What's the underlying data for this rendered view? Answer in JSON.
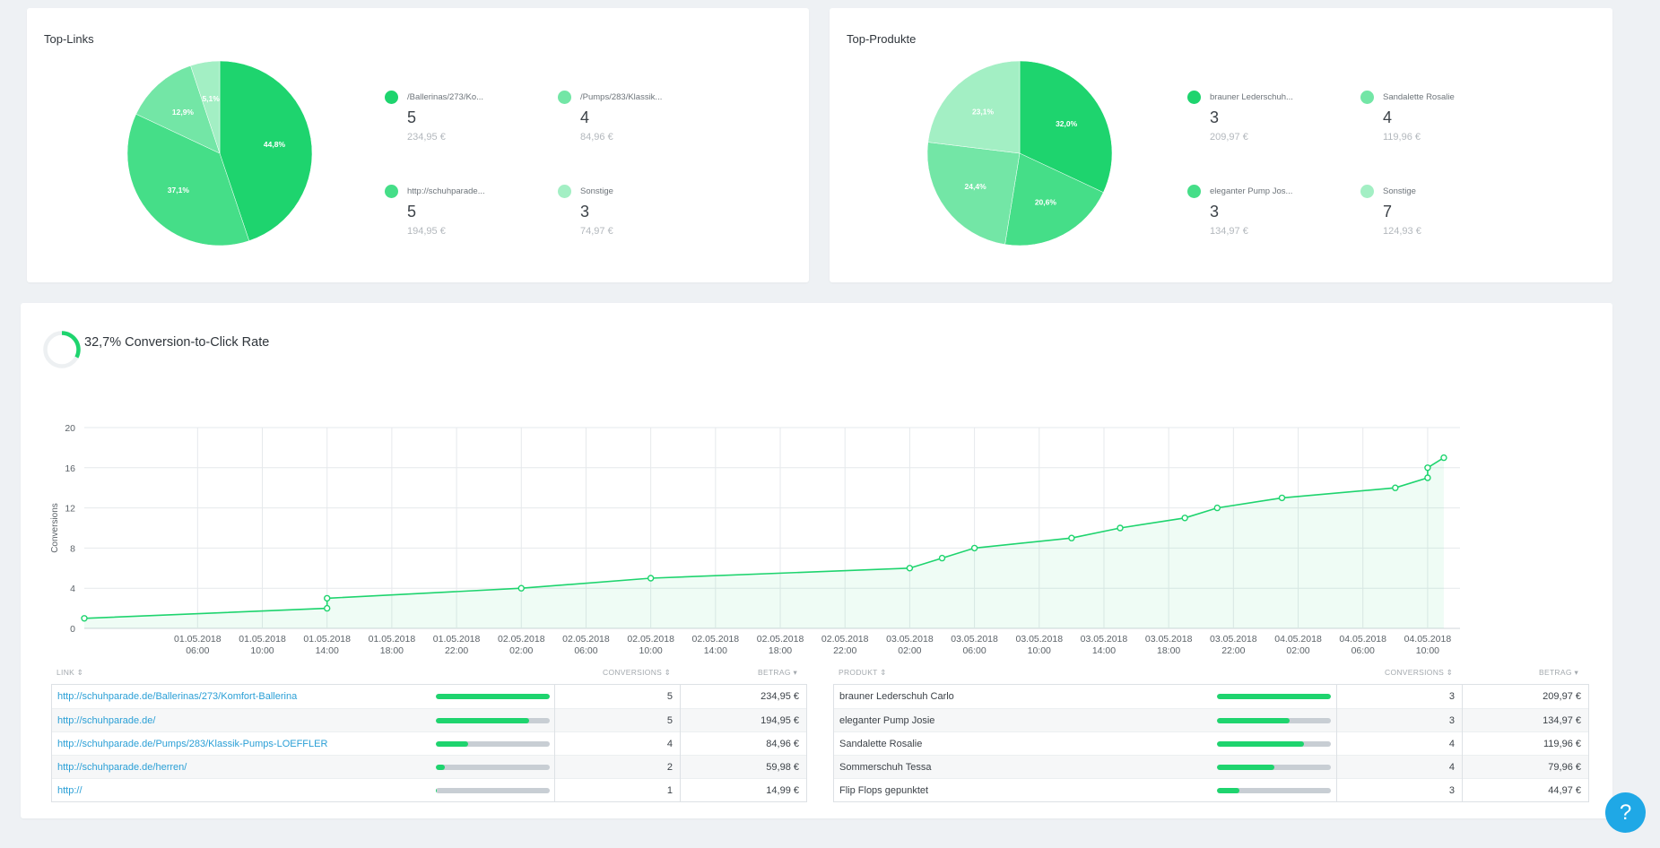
{
  "colors": {
    "accent": "#1ed46e",
    "slice1": "#1ed46e",
    "slice2": "#45de88",
    "slice3": "#73e6a6",
    "slice4": "#a3efc4",
    "link": "#2a9fd6",
    "track": "#c8ced4",
    "help": "#1fa8e6"
  },
  "top_links": {
    "title": "Top-Links",
    "legend": [
      {
        "label": "/Ballerinas/273/Ko...",
        "count": "5",
        "amount": "234,95 €"
      },
      {
        "label": "/Pumps/283/Klassik...",
        "count": "4",
        "amount": "84,96 €"
      },
      {
        "label": "http://schuhparade...",
        "count": "5",
        "amount": "194,95 €"
      },
      {
        "label": "Sonstige",
        "count": "3",
        "amount": "74,97 €"
      }
    ]
  },
  "top_products": {
    "title": "Top-Produkte",
    "legend": [
      {
        "label": "brauner Lederschuh...",
        "count": "3",
        "amount": "209,97 €"
      },
      {
        "label": "Sandalette Rosalie",
        "count": "4",
        "amount": "119,96 €"
      },
      {
        "label": "eleganter Pump Jos...",
        "count": "3",
        "amount": "134,97 €"
      },
      {
        "label": "Sonstige",
        "count": "7",
        "amount": "124,93 €"
      }
    ]
  },
  "conversion": {
    "rate_text": "32,7% Conversion-to-Click Rate",
    "rate_value": 0.327
  },
  "chart_data": [
    {
      "type": "pie",
      "title": "Top-Links",
      "categories": [
        "/Ballerinas/273/Ko...",
        "http://schuhparade...",
        "/Pumps/283/Klassik...",
        "Sonstige"
      ],
      "values": [
        44.8,
        37.1,
        12.9,
        5.1
      ],
      "labels": [
        "44,8%",
        "37,1%",
        "12,9%",
        "5,1%"
      ]
    },
    {
      "type": "pie",
      "title": "Top-Produkte",
      "categories": [
        "brauner Lederschuh...",
        "eleganter Pump Jos...",
        "Sandalette Rosalie",
        "Sonstige"
      ],
      "values": [
        32.0,
        20.6,
        24.4,
        23.1
      ],
      "labels": [
        "32,0%",
        "20,6%",
        "24,4%",
        "23,1%"
      ]
    },
    {
      "type": "line",
      "title": "",
      "xlabel": "",
      "ylabel": "Conversions",
      "ylim": [
        0,
        20
      ],
      "yticks": [
        0,
        4,
        8,
        12,
        16,
        20
      ],
      "xlim": [
        "2018-04-30 23:00",
        "2018-05-04 12:00"
      ],
      "xticks": [
        {
          "t": "2018-05-01 06:00",
          "l1": "01.05.2018",
          "l2": "06:00"
        },
        {
          "t": "2018-05-01 10:00",
          "l1": "01.05.2018",
          "l2": "10:00"
        },
        {
          "t": "2018-05-01 14:00",
          "l1": "01.05.2018",
          "l2": "14:00"
        },
        {
          "t": "2018-05-01 18:00",
          "l1": "01.05.2018",
          "l2": "18:00"
        },
        {
          "t": "2018-05-01 22:00",
          "l1": "01.05.2018",
          "l2": "22:00"
        },
        {
          "t": "2018-05-02 02:00",
          "l1": "02.05.2018",
          "l2": "02:00"
        },
        {
          "t": "2018-05-02 06:00",
          "l1": "02.05.2018",
          "l2": "06:00"
        },
        {
          "t": "2018-05-02 10:00",
          "l1": "02.05.2018",
          "l2": "10:00"
        },
        {
          "t": "2018-05-02 14:00",
          "l1": "02.05.2018",
          "l2": "14:00"
        },
        {
          "t": "2018-05-02 18:00",
          "l1": "02.05.2018",
          "l2": "18:00"
        },
        {
          "t": "2018-05-02 22:00",
          "l1": "02.05.2018",
          "l2": "22:00"
        },
        {
          "t": "2018-05-03 02:00",
          "l1": "03.05.2018",
          "l2": "02:00"
        },
        {
          "t": "2018-05-03 06:00",
          "l1": "03.05.2018",
          "l2": "06:00"
        },
        {
          "t": "2018-05-03 10:00",
          "l1": "03.05.2018",
          "l2": "10:00"
        },
        {
          "t": "2018-05-03 14:00",
          "l1": "03.05.2018",
          "l2": "14:00"
        },
        {
          "t": "2018-05-03 18:00",
          "l1": "03.05.2018",
          "l2": "18:00"
        },
        {
          "t": "2018-05-03 22:00",
          "l1": "03.05.2018",
          "l2": "22:00"
        },
        {
          "t": "2018-05-04 02:00",
          "l1": "04.05.2018",
          "l2": "02:00"
        },
        {
          "t": "2018-05-04 06:00",
          "l1": "04.05.2018",
          "l2": "06:00"
        },
        {
          "t": "2018-05-04 10:00",
          "l1": "04.05.2018",
          "l2": "10:00"
        }
      ],
      "series": [
        {
          "points": [
            [
              "2018-04-30 23:00",
              1
            ],
            [
              "2018-05-01 14:00",
              2
            ],
            [
              "2018-05-01 14:00",
              3
            ],
            [
              "2018-05-02 02:00",
              4
            ],
            [
              "2018-05-02 10:00",
              5
            ],
            [
              "2018-05-03 02:00",
              6
            ],
            [
              "2018-05-03 04:00",
              7
            ],
            [
              "2018-05-03 06:00",
              8
            ],
            [
              "2018-05-03 12:00",
              9
            ],
            [
              "2018-05-03 15:00",
              10
            ],
            [
              "2018-05-03 19:00",
              11
            ],
            [
              "2018-05-03 21:00",
              12
            ],
            [
              "2018-05-04 01:00",
              13
            ],
            [
              "2018-05-04 08:00",
              14
            ],
            [
              "2018-05-04 10:00",
              15
            ],
            [
              "2018-05-04 10:00",
              16
            ],
            [
              "2018-05-04 11:00",
              17
            ]
          ]
        }
      ]
    }
  ],
  "links_table": {
    "headers": {
      "link": "LINK",
      "conversions": "CONVERSIONS",
      "betrag": "BETRAG"
    },
    "rows": [
      {
        "link": "http://schuhparade.de/Ballerinas/273/Komfort-Ballerina",
        "share": 1.0,
        "conversions": "5",
        "betrag": "234,95 €"
      },
      {
        "link": "http://schuhparade.de/",
        "share": 0.82,
        "conversions": "5",
        "betrag": "194,95 €"
      },
      {
        "link": "http://schuhparade.de/Pumps/283/Klassik-Pumps-LOEFFLER",
        "share": 0.28,
        "conversions": "4",
        "betrag": "84,96 €"
      },
      {
        "link": "http://schuhparade.de/herren/",
        "share": 0.08,
        "conversions": "2",
        "betrag": "59,98 €"
      },
      {
        "link": "http://",
        "share": 0.01,
        "conversions": "1",
        "betrag": "14,99 €"
      }
    ]
  },
  "products_table": {
    "headers": {
      "produkt": "PRODUKT",
      "conversions": "CONVERSIONS",
      "betrag": "BETRAG"
    },
    "rows": [
      {
        "produkt": "brauner Lederschuh Carlo",
        "share": 1.0,
        "conversions": "3",
        "betrag": "209,97 €"
      },
      {
        "produkt": "eleganter Pump Josie",
        "share": 0.64,
        "conversions": "3",
        "betrag": "134,97 €"
      },
      {
        "produkt": "Sandalette Rosalie",
        "share": 0.76,
        "conversions": "4",
        "betrag": "119,96 €"
      },
      {
        "produkt": "Sommerschuh Tessa",
        "share": 0.5,
        "conversions": "4",
        "betrag": "79,96 €"
      },
      {
        "produkt": "Flip Flops gepunktet",
        "share": 0.2,
        "conversions": "3",
        "betrag": "44,97 €"
      }
    ]
  },
  "help": {
    "label": "?"
  }
}
